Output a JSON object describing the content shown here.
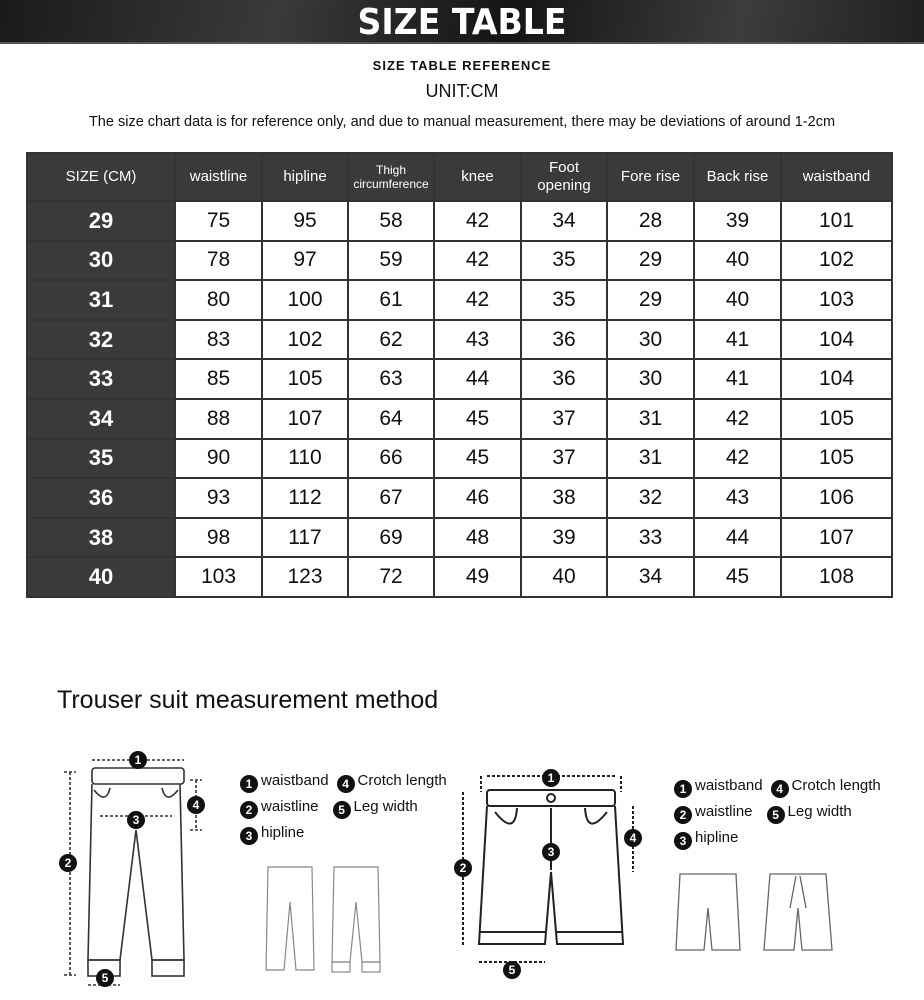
{
  "banner_title": "SIZE TABLE",
  "reference_title": "SIZE TABLE REFERENCE",
  "unit": "UNIT:CM",
  "note": "The size chart data is for reference only, and due to manual measurement, there may be deviations of around 1-2cm",
  "table": {
    "headers": [
      "SIZE (CM)",
      "waistline",
      "hipline",
      "Thigh circumference",
      "knee",
      "Foot opening",
      "Fore rise",
      "Back rise",
      "waistband"
    ],
    "rows": [
      [
        "29",
        "75",
        "95",
        "58",
        "42",
        "34",
        "28",
        "39",
        "101"
      ],
      [
        "30",
        "78",
        "97",
        "59",
        "42",
        "35",
        "29",
        "40",
        "102"
      ],
      [
        "31",
        "80",
        "100",
        "61",
        "42",
        "35",
        "29",
        "40",
        "103"
      ],
      [
        "32",
        "83",
        "102",
        "62",
        "43",
        "36",
        "30",
        "41",
        "104"
      ],
      [
        "33",
        "85",
        "105",
        "63",
        "44",
        "36",
        "30",
        "41",
        "104"
      ],
      [
        "34",
        "88",
        "107",
        "64",
        "45",
        "37",
        "31",
        "42",
        "105"
      ],
      [
        "35",
        "90",
        "110",
        "66",
        "45",
        "37",
        "31",
        "42",
        "105"
      ],
      [
        "36",
        "93",
        "112",
        "67",
        "46",
        "38",
        "32",
        "43",
        "106"
      ],
      [
        "38",
        "98",
        "117",
        "69",
        "48",
        "39",
        "33",
        "44",
        "107"
      ],
      [
        "40",
        "103",
        "123",
        "72",
        "49",
        "40",
        "34",
        "45",
        "108"
      ]
    ]
  },
  "method_title": "Trouser suit measurement method",
  "legend": {
    "n1": "1",
    "n2": "2",
    "n3": "3",
    "n4": "4",
    "n5": "5",
    "waistband": "waistband",
    "waistline": "waistline",
    "hipline": "hipline",
    "crotch": "Crotch length",
    "leg": "Leg width"
  },
  "colors": {
    "header_bg": "#3a3a3a",
    "header_text": "#ffffff"
  }
}
